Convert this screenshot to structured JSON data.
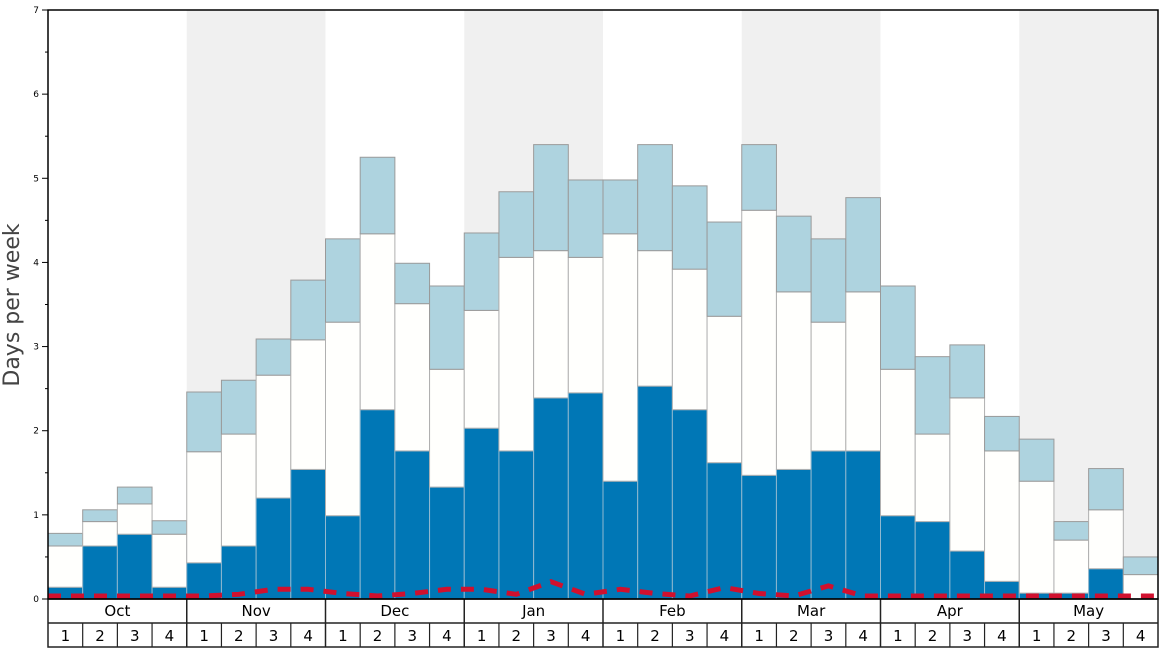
{
  "chart_data": {
    "type": "bar",
    "stacked": true,
    "title": "",
    "ylabel": "Days per week",
    "xlabel": "",
    "ylim": [
      0,
      7
    ],
    "yticks": [
      "0",
      "1",
      "2",
      "3",
      "4",
      "5",
      "6",
      "7"
    ],
    "months": [
      "Oct",
      "Nov",
      "Dec",
      "Jan",
      "Feb",
      "Mar",
      "Apr",
      "May"
    ],
    "weeks": [
      "1",
      "2",
      "3",
      "4"
    ],
    "shaded_months": [
      "Nov",
      "Jan",
      "Mar",
      "May"
    ],
    "colors": {
      "bottom": "#0077b6",
      "middle": "#fffffd",
      "top": "#aed3df",
      "line": "#d0102e",
      "shade": "#f0f0f0"
    },
    "series": [
      {
        "name": "dark",
        "cumulative_top": [
          0.14,
          0.63,
          0.77,
          0.14,
          0.43,
          0.63,
          1.2,
          1.54,
          0.99,
          2.25,
          1.76,
          1.33,
          2.03,
          1.76,
          2.39,
          2.45,
          1.4,
          2.53,
          2.25,
          1.62,
          1.47,
          1.54,
          1.76,
          1.76,
          0.99,
          0.92,
          0.57,
          0.21,
          0.07,
          0.07,
          0.36,
          0.0
        ]
      },
      {
        "name": "white",
        "cumulative_top": [
          0.63,
          0.92,
          1.13,
          0.77,
          1.75,
          1.96,
          2.66,
          3.08,
          3.29,
          4.34,
          3.51,
          2.73,
          3.43,
          4.06,
          4.14,
          4.06,
          4.34,
          4.14,
          3.92,
          3.36,
          4.62,
          3.65,
          3.29,
          3.65,
          2.73,
          1.96,
          2.39,
          1.76,
          1.4,
          0.7,
          1.06,
          0.29
        ]
      },
      {
        "name": "light",
        "cumulative_top": [
          0.78,
          1.06,
          1.33,
          0.93,
          2.46,
          2.6,
          3.09,
          3.79,
          4.28,
          5.25,
          3.99,
          3.72,
          4.35,
          4.84,
          5.4,
          4.98,
          4.98,
          5.4,
          4.91,
          4.48,
          5.4,
          4.55,
          4.28,
          4.77,
          3.72,
          2.88,
          3.02,
          2.17,
          1.9,
          0.92,
          1.55,
          0.5
        ]
      },
      {
        "name": "dashed-line",
        "values": [
          0,
          0,
          0,
          0,
          0,
          0.02,
          0.08,
          0.08,
          0.03,
          0,
          0.03,
          0.08,
          0.08,
          0.02,
          0.17,
          0.02,
          0.08,
          0.03,
          0.0,
          0.1,
          0.03,
          0.0,
          0.12,
          0.0,
          0,
          0,
          0,
          0,
          0,
          0,
          0,
          0
        ]
      }
    ]
  }
}
